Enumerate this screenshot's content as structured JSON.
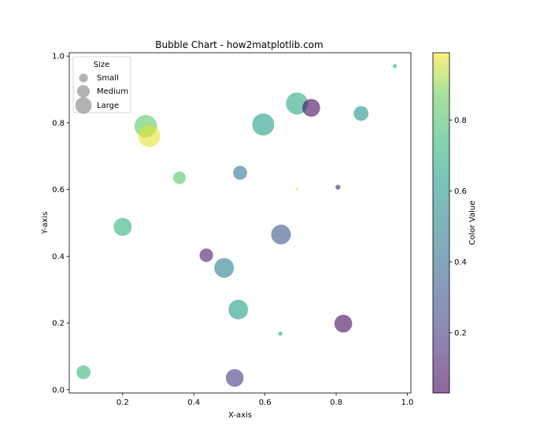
{
  "chart_data": {
    "type": "scatter",
    "title": "Bubble Chart - how2matplotlib.com",
    "xlabel": "X-axis",
    "ylabel": "Y-axis",
    "xlim": [
      0.05,
      1.01
    ],
    "ylim": [
      -0.01,
      1.01
    ],
    "xticks": [
      0.2,
      0.4,
      0.6,
      0.8,
      1.0
    ],
    "xtick_labels": [
      "0.2",
      "0.4",
      "0.6",
      "0.8",
      "1.0"
    ],
    "yticks": [
      0.0,
      0.2,
      0.4,
      0.6,
      0.8,
      1.0
    ],
    "ytick_labels": [
      "0.0",
      "0.2",
      "0.4",
      "0.6",
      "0.8",
      "1.0"
    ],
    "grid": false,
    "colormap": "viridis",
    "alpha": 0.6,
    "points": [
      {
        "x": 0.265,
        "y": 0.79,
        "size": 420,
        "c": 0.84
      },
      {
        "x": 0.275,
        "y": 0.76,
        "size": 400,
        "c": 0.97
      },
      {
        "x": 0.69,
        "y": 0.858,
        "size": 400,
        "c": 0.68
      },
      {
        "x": 0.73,
        "y": 0.845,
        "size": 260,
        "c": 0.05
      },
      {
        "x": 0.595,
        "y": 0.795,
        "size": 400,
        "c": 0.63
      },
      {
        "x": 0.87,
        "y": 0.828,
        "size": 180,
        "c": 0.58
      },
      {
        "x": 0.965,
        "y": 0.97,
        "size": 15,
        "c": 0.72
      },
      {
        "x": 0.36,
        "y": 0.635,
        "size": 130,
        "c": 0.82
      },
      {
        "x": 0.53,
        "y": 0.65,
        "size": 160,
        "c": 0.45
      },
      {
        "x": 0.69,
        "y": 0.602,
        "size": 4,
        "c": 0.93
      },
      {
        "x": 0.805,
        "y": 0.607,
        "size": 20,
        "c": 0.1
      },
      {
        "x": 0.2,
        "y": 0.488,
        "size": 270,
        "c": 0.72
      },
      {
        "x": 0.645,
        "y": 0.465,
        "size": 320,
        "c": 0.32
      },
      {
        "x": 0.435,
        "y": 0.403,
        "size": 150,
        "c": 0.1
      },
      {
        "x": 0.485,
        "y": 0.365,
        "size": 320,
        "c": 0.5
      },
      {
        "x": 0.525,
        "y": 0.24,
        "size": 320,
        "c": 0.63
      },
      {
        "x": 0.643,
        "y": 0.168,
        "size": 15,
        "c": 0.67
      },
      {
        "x": 0.82,
        "y": 0.198,
        "size": 260,
        "c": 0.05
      },
      {
        "x": 0.09,
        "y": 0.052,
        "size": 160,
        "c": 0.75
      },
      {
        "x": 0.515,
        "y": 0.035,
        "size": 260,
        "c": 0.22
      }
    ],
    "legend": {
      "title": "Size",
      "placement": "top-left",
      "entries": [
        "Small",
        "Medium",
        "Large"
      ]
    },
    "colorbar": {
      "label": "Color Value",
      "range": [
        0.03,
        0.99
      ],
      "ticks": [
        0.2,
        0.4,
        0.6,
        0.8
      ],
      "tick_labels": [
        "0.2",
        "0.4",
        "0.6",
        "0.8"
      ]
    }
  }
}
